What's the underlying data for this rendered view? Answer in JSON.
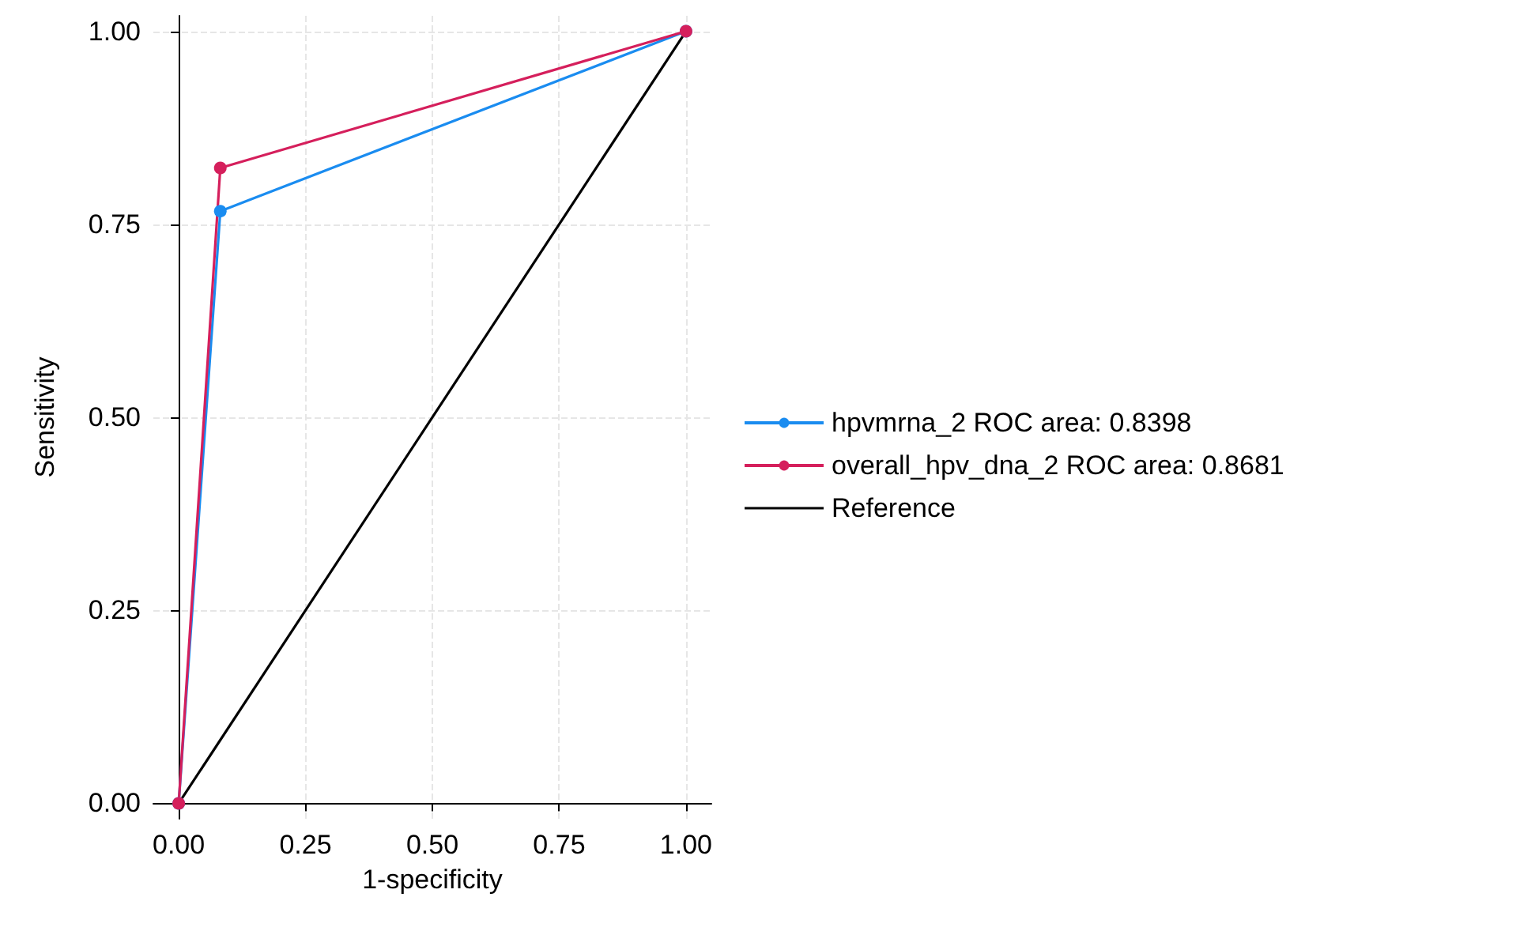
{
  "chart_data": {
    "type": "line",
    "xlabel": "1-specificity",
    "ylabel": "Sensitivity",
    "xlim": [
      -0.05,
      1.05
    ],
    "ylim": [
      -0.02,
      1.02
    ],
    "xticks": [
      {
        "value": 0,
        "label": "0.00"
      },
      {
        "value": 0.25,
        "label": "0.25"
      },
      {
        "value": 0.5,
        "label": "0.50"
      },
      {
        "value": 0.75,
        "label": "0.75"
      },
      {
        "value": 1,
        "label": "1.00"
      }
    ],
    "yticks": [
      {
        "value": 0,
        "label": "0.00"
      },
      {
        "value": 0.25,
        "label": "0.25"
      },
      {
        "value": 0.5,
        "label": "0.50"
      },
      {
        "value": 0.75,
        "label": "0.75"
      },
      {
        "value": 1,
        "label": "1.00"
      }
    ],
    "grid": true,
    "legend": "right",
    "series": [
      {
        "name": "hpvmrna_2 ROC area: 0.8398",
        "color": "#1a8cf0",
        "x": [
          0,
          0.082,
          1
        ],
        "values": [
          0,
          0.767,
          1
        ],
        "marker": "circle"
      },
      {
        "name": "overall_hpv_dna_2 ROC area: 0.8681",
        "color": "#d51f5c",
        "x": [
          0,
          0.082,
          1
        ],
        "values": [
          0,
          0.823,
          1
        ],
        "marker": "circle"
      },
      {
        "name": "Reference",
        "color": "#000000",
        "x": [
          0,
          1
        ],
        "values": [
          0,
          1
        ],
        "marker": "none"
      }
    ]
  }
}
